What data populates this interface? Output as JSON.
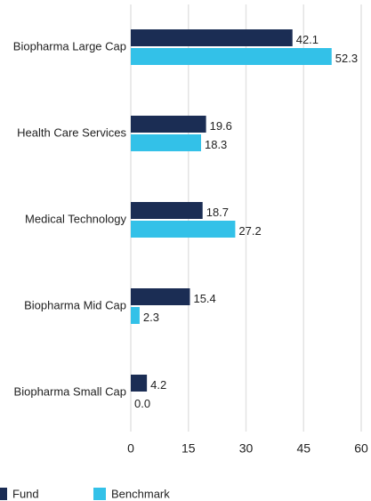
{
  "chart_data": {
    "type": "bar",
    "orientation": "horizontal",
    "categories": [
      "Biopharma Large Cap",
      "Health Care Services",
      "Medical Technology",
      "Biopharma Mid Cap",
      "Biopharma Small Cap"
    ],
    "series": [
      {
        "name": "Fund",
        "color": "#1b2d54",
        "values": [
          42.1,
          19.6,
          18.7,
          15.4,
          4.2
        ],
        "value_labels": [
          "42.1",
          "19.6",
          "18.7",
          "15.4",
          "4.2"
        ]
      },
      {
        "name": "Benchmark",
        "color": "#33c1e8",
        "values": [
          52.3,
          18.3,
          27.2,
          2.3,
          0
        ],
        "value_labels": [
          "52.3",
          "18.3",
          "27.2",
          "2.3",
          "0.0"
        ]
      }
    ],
    "xlim": [
      0,
      60
    ],
    "xticks": [
      0,
      15,
      30,
      45,
      60
    ],
    "grid": true,
    "legend": "bottom-left"
  }
}
